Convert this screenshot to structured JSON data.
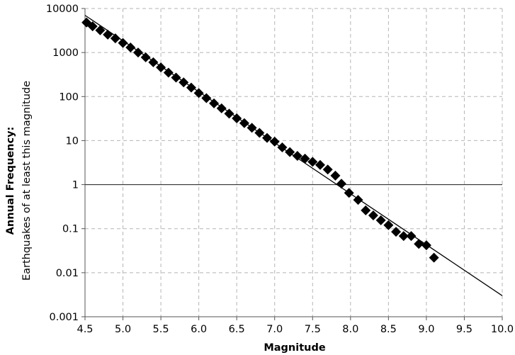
{
  "chart_data": {
    "type": "scatter",
    "xlabel": "Magnitude",
    "ylabel": "Annual Frequency:",
    "ylabel_sub": "Earthquakes of at least this magnitude",
    "xlim": [
      4.5,
      10.0
    ],
    "ylim": [
      0.001,
      10000
    ],
    "yscale": "log",
    "grid": true,
    "x_ticks": [
      "4.5",
      "5.0",
      "5.5",
      "6.0",
      "6.5",
      "7.0",
      "7.5",
      "8.0",
      "8.5",
      "9.0",
      "9.5",
      "10.0"
    ],
    "y_ticks": [
      "10000",
      "1000",
      "100",
      "10",
      "1",
      "0.1",
      "0.01",
      "0.001"
    ],
    "series": [
      {
        "marker": "diamond",
        "x": [
          4.52,
          4.6,
          4.7,
          4.8,
          4.9,
          5.0,
          5.1,
          5.2,
          5.3,
          5.4,
          5.5,
          5.6,
          5.7,
          5.8,
          5.9,
          6.0,
          6.1,
          6.2,
          6.3,
          6.4,
          6.5,
          6.6,
          6.7,
          6.8,
          6.9,
          7.0,
          7.1,
          7.2,
          7.3,
          7.4,
          7.5,
          7.6,
          7.7,
          7.8,
          7.88,
          7.98,
          8.1,
          8.2,
          8.3,
          8.4,
          8.5,
          8.6,
          8.7,
          8.8,
          8.9,
          9.0,
          9.1
        ],
        "y": [
          4800,
          3950,
          3200,
          2550,
          2100,
          1650,
          1300,
          1000,
          780,
          600,
          460,
          350,
          270,
          210,
          160,
          120,
          92,
          70,
          54,
          41,
          32,
          25,
          19.5,
          15,
          11.5,
          9.5,
          7,
          5.5,
          4.5,
          3.9,
          3.3,
          2.8,
          2.2,
          1.6,
          1.05,
          0.65,
          0.45,
          0.26,
          0.2,
          0.155,
          0.12,
          0.085,
          0.068,
          0.068,
          0.045,
          0.042,
          0.022
        ]
      },
      {
        "marker": "line",
        "x": [
          4.5,
          10.0
        ],
        "y": [
          7000,
          0.003
        ]
      }
    ],
    "reference_line_y": 1
  },
  "colors": {
    "marker": "#000000",
    "fit_line": "#000000",
    "grid": "#b5b5b5",
    "axis": "#555555"
  }
}
